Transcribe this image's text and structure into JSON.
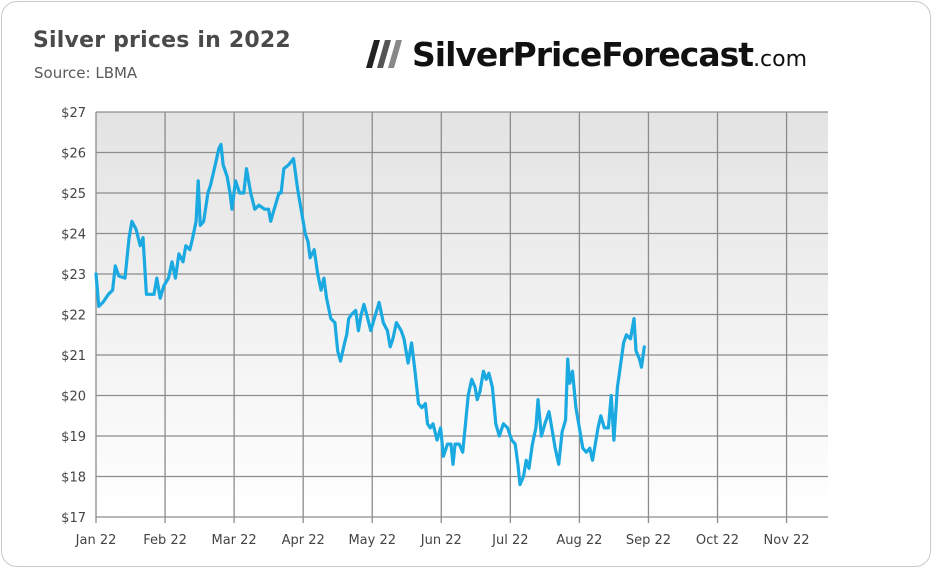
{
  "header": {
    "title": "Silver prices in 2022",
    "source": "Source: LBMA"
  },
  "logo": {
    "brand": "SilverPriceForecast",
    "tld": ".com",
    "icon": "slanted-stripes-logo-icon"
  },
  "colors": {
    "line": "#1aa9e0",
    "grid": "#8c8c8c",
    "plot_bg_top": "#e3e3e3",
    "plot_bg_bottom": "#ffffff",
    "text": "#4a4a4a"
  },
  "chart_data": {
    "type": "line",
    "title": "Silver prices in 2022",
    "subtitle": "Source: LBMA",
    "xlabel": "",
    "ylabel": "",
    "xlim": [
      0,
      10.6
    ],
    "ylim": [
      17,
      27
    ],
    "grid": true,
    "x_ticks": [
      0,
      1,
      2,
      3,
      4,
      5,
      6,
      7,
      8,
      9,
      10
    ],
    "x_tick_labels": [
      "Jan 22",
      "Feb 22",
      "Mar 22",
      "Apr 22",
      "May 22",
      "Jun 22",
      "Jul 22",
      "Aug 22",
      "Sep 22",
      "Oct 22",
      "Nov 22"
    ],
    "y_ticks": [
      17,
      18,
      19,
      20,
      21,
      22,
      23,
      24,
      25,
      26,
      27
    ],
    "y_tick_labels": [
      "$17",
      "$18",
      "$19",
      "$20",
      "$21",
      "$22",
      "$23",
      "$24",
      "$25",
      "$26",
      "$27"
    ],
    "series": [
      {
        "name": "",
        "points": [
          [
            0.0,
            23.0
          ],
          [
            0.04,
            22.2
          ],
          [
            0.1,
            22.3
          ],
          [
            0.18,
            22.5
          ],
          [
            0.24,
            22.6
          ],
          [
            0.28,
            23.2
          ],
          [
            0.33,
            22.95
          ],
          [
            0.42,
            22.9
          ],
          [
            0.48,
            23.9
          ],
          [
            0.52,
            24.3
          ],
          [
            0.58,
            24.1
          ],
          [
            0.64,
            23.7
          ],
          [
            0.68,
            23.9
          ],
          [
            0.73,
            22.5
          ],
          [
            0.78,
            22.5
          ],
          [
            0.84,
            22.5
          ],
          [
            0.88,
            22.9
          ],
          [
            0.93,
            22.4
          ],
          [
            0.98,
            22.7
          ],
          [
            1.05,
            22.9
          ],
          [
            1.1,
            23.3
          ],
          [
            1.15,
            22.9
          ],
          [
            1.2,
            23.5
          ],
          [
            1.26,
            23.3
          ],
          [
            1.3,
            23.7
          ],
          [
            1.36,
            23.6
          ],
          [
            1.4,
            23.9
          ],
          [
            1.45,
            24.3
          ],
          [
            1.48,
            25.3
          ],
          [
            1.51,
            24.2
          ],
          [
            1.56,
            24.3
          ],
          [
            1.62,
            25.0
          ],
          [
            1.66,
            25.2
          ],
          [
            1.7,
            25.5
          ],
          [
            1.74,
            25.8
          ],
          [
            1.78,
            26.1
          ],
          [
            1.81,
            26.2
          ],
          [
            1.84,
            25.7
          ],
          [
            1.9,
            25.4
          ],
          [
            1.94,
            25.0
          ],
          [
            1.97,
            24.6
          ],
          [
            2.02,
            25.3
          ],
          [
            2.08,
            25.0
          ],
          [
            2.14,
            25.0
          ],
          [
            2.18,
            25.6
          ],
          [
            2.24,
            25.0
          ],
          [
            2.3,
            24.6
          ],
          [
            2.36,
            24.7
          ],
          [
            2.44,
            24.6
          ],
          [
            2.5,
            24.6
          ],
          [
            2.53,
            24.3
          ],
          [
            2.58,
            24.6
          ],
          [
            2.65,
            25.0
          ],
          [
            2.68,
            25.0
          ],
          [
            2.72,
            25.6
          ],
          [
            2.79,
            25.7
          ],
          [
            2.86,
            25.85
          ],
          [
            2.92,
            25.1
          ],
          [
            2.98,
            24.5
          ],
          [
            3.03,
            24.0
          ],
          [
            3.07,
            23.8
          ],
          [
            3.1,
            23.4
          ],
          [
            3.16,
            23.6
          ],
          [
            3.21,
            23.0
          ],
          [
            3.26,
            22.6
          ],
          [
            3.3,
            22.9
          ],
          [
            3.34,
            22.4
          ],
          [
            3.4,
            21.9
          ],
          [
            3.46,
            21.8
          ],
          [
            3.5,
            21.1
          ],
          [
            3.54,
            20.85
          ],
          [
            3.6,
            21.3
          ],
          [
            3.63,
            21.5
          ],
          [
            3.66,
            21.9
          ],
          [
            3.7,
            22.0
          ],
          [
            3.76,
            22.1
          ],
          [
            3.8,
            21.6
          ],
          [
            3.84,
            22.0
          ],
          [
            3.88,
            22.25
          ],
          [
            3.92,
            22.0
          ],
          [
            3.98,
            21.6
          ],
          [
            4.03,
            21.9
          ],
          [
            4.1,
            22.3
          ],
          [
            4.16,
            21.8
          ],
          [
            4.22,
            21.6
          ],
          [
            4.26,
            21.2
          ],
          [
            4.3,
            21.4
          ],
          [
            4.35,
            21.8
          ],
          [
            4.42,
            21.6
          ],
          [
            4.46,
            21.4
          ],
          [
            4.52,
            20.8
          ],
          [
            4.57,
            21.3
          ],
          [
            4.62,
            20.6
          ],
          [
            4.67,
            19.8
          ],
          [
            4.72,
            19.7
          ],
          [
            4.77,
            19.8
          ],
          [
            4.8,
            19.3
          ],
          [
            4.84,
            19.2
          ],
          [
            4.88,
            19.3
          ],
          [
            4.94,
            18.9
          ],
          [
            4.99,
            19.2
          ],
          [
            5.03,
            18.5
          ],
          [
            5.09,
            18.8
          ],
          [
            5.14,
            18.8
          ],
          [
            5.17,
            18.3
          ],
          [
            5.2,
            18.8
          ],
          [
            5.26,
            18.8
          ],
          [
            5.31,
            18.6
          ],
          [
            5.35,
            19.3
          ],
          [
            5.39,
            20.0
          ],
          [
            5.44,
            20.4
          ],
          [
            5.49,
            20.2
          ],
          [
            5.52,
            19.9
          ],
          [
            5.56,
            20.1
          ],
          [
            5.61,
            20.6
          ],
          [
            5.65,
            20.4
          ],
          [
            5.69,
            20.55
          ],
          [
            5.74,
            20.2
          ],
          [
            5.79,
            19.3
          ],
          [
            5.84,
            19.0
          ],
          [
            5.9,
            19.3
          ],
          [
            5.96,
            19.2
          ],
          [
            6.02,
            18.9
          ],
          [
            6.07,
            18.8
          ],
          [
            6.11,
            18.3
          ],
          [
            6.14,
            17.8
          ],
          [
            6.19,
            18.0
          ],
          [
            6.23,
            18.4
          ],
          [
            6.27,
            18.2
          ],
          [
            6.32,
            18.8
          ],
          [
            6.37,
            19.2
          ],
          [
            6.4,
            19.9
          ],
          [
            6.45,
            19.0
          ],
          [
            6.5,
            19.3
          ],
          [
            6.56,
            19.6
          ],
          [
            6.6,
            19.2
          ],
          [
            6.65,
            18.7
          ],
          [
            6.7,
            18.3
          ],
          [
            6.75,
            19.1
          ],
          [
            6.8,
            19.4
          ],
          [
            6.83,
            20.9
          ],
          [
            6.86,
            20.3
          ],
          [
            6.9,
            20.6
          ],
          [
            6.95,
            19.7
          ],
          [
            7.0,
            19.2
          ],
          [
            7.05,
            18.7
          ],
          [
            7.1,
            18.6
          ],
          [
            7.15,
            18.7
          ],
          [
            7.19,
            18.4
          ],
          [
            7.23,
            18.8
          ],
          [
            7.27,
            19.2
          ],
          [
            7.31,
            19.5
          ],
          [
            7.36,
            19.2
          ],
          [
            7.42,
            19.2
          ],
          [
            7.46,
            20.0
          ],
          [
            7.5,
            18.9
          ],
          [
            7.55,
            20.2
          ],
          [
            7.6,
            20.8
          ],
          [
            7.64,
            21.3
          ],
          [
            7.68,
            21.5
          ],
          [
            7.74,
            21.4
          ],
          [
            7.79,
            21.9
          ],
          [
            7.82,
            21.1
          ],
          [
            7.87,
            20.9
          ],
          [
            7.9,
            20.7
          ],
          [
            7.94,
            21.2
          ]
        ]
      }
    ]
  }
}
